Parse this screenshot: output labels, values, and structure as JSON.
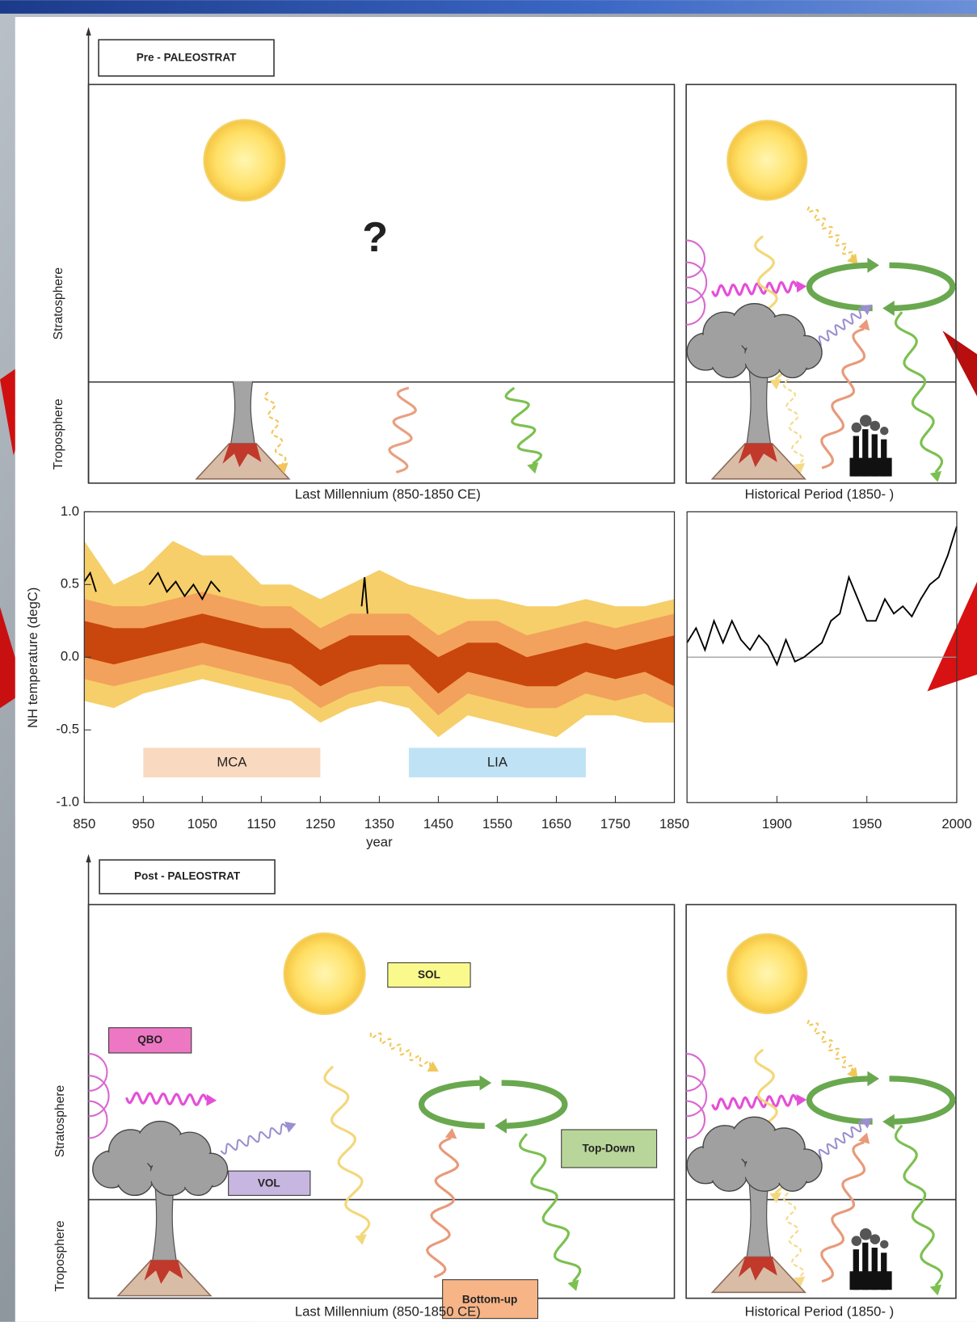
{
  "top_panel": {
    "title": "Pre - PALEOSTRAT",
    "question": "?",
    "stratosphere": "Stratosphere",
    "troposphere": "Troposphere",
    "left_caption": "Last Millennium (850-1850 CE)",
    "right_caption": "Historical Period (1850- )"
  },
  "chart_data": [
    {
      "type": "line",
      "y_label": "NH temperature (degC)",
      "x_label": "year",
      "xlim": [
        850,
        1850
      ],
      "ylim": [
        -1,
        1
      ],
      "xticks": [
        850,
        950,
        1050,
        1150,
        1250,
        1350,
        1450,
        1550,
        1650,
        1750,
        1850
      ],
      "yticks": [
        {
          "value": 1,
          "label": "1.0"
        },
        {
          "value": 0.5,
          "label": "0.5"
        },
        {
          "value": 0,
          "label": "0.0"
        },
        {
          "value": -0.5,
          "label": "-0.5"
        },
        {
          "value": -1,
          "label": "-1.0"
        }
      ],
      "band_x": [
        850,
        900,
        950,
        1000,
        1050,
        1100,
        1150,
        1200,
        1250,
        1300,
        1350,
        1400,
        1450,
        1500,
        1550,
        1600,
        1650,
        1700,
        1750,
        1800,
        1850
      ],
      "bands": [
        {
          "color": "#f6cf6a",
          "lower": [
            -0.3,
            -0.35,
            -0.25,
            -0.2,
            -0.15,
            -0.2,
            -0.25,
            -0.3,
            -0.45,
            -0.35,
            -0.3,
            -0.35,
            -0.55,
            -0.4,
            -0.45,
            -0.5,
            -0.55,
            -0.4,
            -0.4,
            -0.45,
            -0.45
          ],
          "upper": [
            0.8,
            0.5,
            0.6,
            0.8,
            0.7,
            0.7,
            0.5,
            0.5,
            0.4,
            0.5,
            0.6,
            0.5,
            0.45,
            0.4,
            0.4,
            0.35,
            0.35,
            0.4,
            0.35,
            0.35,
            0.4
          ]
        },
        {
          "color": "#f2a25c",
          "lower": [
            -0.15,
            -0.2,
            -0.15,
            -0.1,
            -0.05,
            -0.1,
            -0.15,
            -0.2,
            -0.35,
            -0.25,
            -0.2,
            -0.2,
            -0.4,
            -0.25,
            -0.3,
            -0.35,
            -0.35,
            -0.25,
            -0.3,
            -0.25,
            -0.35
          ],
          "upper": [
            0.4,
            0.35,
            0.35,
            0.4,
            0.45,
            0.4,
            0.35,
            0.35,
            0.2,
            0.3,
            0.3,
            0.3,
            0.15,
            0.25,
            0.25,
            0.15,
            0.2,
            0.25,
            0.2,
            0.25,
            0.3
          ]
        },
        {
          "color": "#c9460c",
          "lower": [
            0.0,
            -0.05,
            0.0,
            0.05,
            0.1,
            0.05,
            0.0,
            -0.05,
            -0.2,
            -0.1,
            -0.05,
            -0.05,
            -0.25,
            -0.1,
            -0.15,
            -0.2,
            -0.2,
            -0.1,
            -0.15,
            -0.1,
            -0.2
          ],
          "upper": [
            0.25,
            0.2,
            0.2,
            0.25,
            0.3,
            0.25,
            0.2,
            0.2,
            0.05,
            0.15,
            0.15,
            0.15,
            0.0,
            0.1,
            0.1,
            0.0,
            0.05,
            0.1,
            0.05,
            0.1,
            0.15
          ]
        }
      ],
      "series": [
        {
          "color": "#000000",
          "x": [
            850,
            860,
            870,
            880,
            960,
            975,
            990,
            1005,
            1020,
            1035,
            1050,
            1065,
            1080,
            1090,
            1320,
            1325,
            1330
          ],
          "values": [
            0.52,
            0.58,
            0.45,
            null,
            0.5,
            0.58,
            0.45,
            0.52,
            0.42,
            0.5,
            0.4,
            0.52,
            0.45,
            null,
            0.35,
            0.55,
            0.3
          ]
        }
      ],
      "spans": [
        {
          "label": "MCA",
          "start": 950,
          "end": 1250,
          "color": "#f9d9bf"
        },
        {
          "label": "LIA",
          "start": 1400,
          "end": 1700,
          "color": "#bfe3f5"
        }
      ]
    },
    {
      "type": "line",
      "xlim": [
        1850,
        2000
      ],
      "ylim": [
        -1,
        1
      ],
      "xticks": [
        1900,
        1950,
        2000
      ],
      "hline": 0,
      "hline_color": "#999999",
      "series": [
        {
          "color": "#000000",
          "x": [
            1850,
            1855,
            1860,
            1865,
            1870,
            1875,
            1880,
            1885,
            1890,
            1895,
            1900,
            1905,
            1910,
            1915,
            1920,
            1925,
            1930,
            1935,
            1940,
            1945,
            1950,
            1955,
            1960,
            1965,
            1970,
            1975,
            1980,
            1985,
            1990,
            1995,
            2000
          ],
          "values": [
            0.1,
            0.2,
            0.05,
            0.25,
            0.1,
            0.25,
            0.12,
            0.05,
            0.15,
            0.08,
            -0.05,
            0.12,
            -0.03,
            0.0,
            0.05,
            0.1,
            0.25,
            0.3,
            0.55,
            0.4,
            0.25,
            0.25,
            0.4,
            0.3,
            0.35,
            0.28,
            0.4,
            0.5,
            0.55,
            0.7,
            0.9
          ]
        }
      ]
    }
  ],
  "bottom_panel": {
    "title": "Post - PALEOSTRAT",
    "stratosphere": "Stratosphere",
    "troposphere": "Troposphere",
    "sol": "SOL",
    "qbo": "QBO",
    "vol": "VOL",
    "top_down": "Top-Down",
    "bottom_up": "Bottom-up",
    "left_caption": "Last Millennium (850-1850 CE)",
    "right_caption": "Historical Period (1850- )"
  }
}
